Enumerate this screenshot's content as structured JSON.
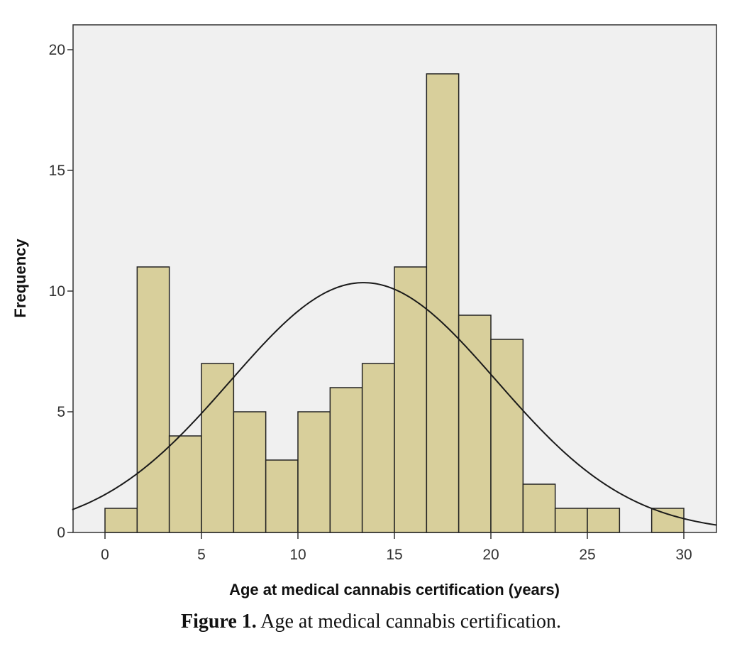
{
  "chart_data": {
    "type": "bar",
    "subtype": "histogram",
    "xlabel": "Age at medical cannabis certification (years)",
    "ylabel": "Frequency",
    "xlim": [
      -1.7,
      31.7
    ],
    "ylim": [
      0,
      21.2
    ],
    "xticks": [
      0,
      5,
      10,
      15,
      20,
      25,
      30
    ],
    "yticks": [
      0,
      5,
      10,
      15,
      20
    ],
    "bin_width": 1.667,
    "bins": [
      {
        "start": 0.0,
        "end": 1.667,
        "value": 1
      },
      {
        "start": 1.667,
        "end": 3.333,
        "value": 11
      },
      {
        "start": 3.333,
        "end": 5.0,
        "value": 4
      },
      {
        "start": 5.0,
        "end": 6.667,
        "value": 7
      },
      {
        "start": 6.667,
        "end": 8.333,
        "value": 5
      },
      {
        "start": 8.333,
        "end": 10.0,
        "value": 3
      },
      {
        "start": 10.0,
        "end": 11.667,
        "value": 5
      },
      {
        "start": 11.667,
        "end": 13.333,
        "value": 6
      },
      {
        "start": 13.333,
        "end": 15.0,
        "value": 7
      },
      {
        "start": 15.0,
        "end": 16.667,
        "value": 11
      },
      {
        "start": 16.667,
        "end": 18.333,
        "value": 19
      },
      {
        "start": 18.333,
        "end": 20.0,
        "value": 9
      },
      {
        "start": 20.0,
        "end": 21.667,
        "value": 8
      },
      {
        "start": 21.667,
        "end": 23.333,
        "value": 2
      },
      {
        "start": 23.333,
        "end": 25.0,
        "value": 1
      },
      {
        "start": 25.0,
        "end": 26.667,
        "value": 1
      },
      {
        "start": 28.333,
        "end": 30.0,
        "value": 1
      }
    ],
    "normal_curve": {
      "mean": 13.4,
      "sd": 6.9,
      "peak": 10.35
    },
    "grid": false
  },
  "caption": {
    "label": "Figure 1.",
    "text": "Age at medical cannabis certification."
  },
  "colors": {
    "plot_background": "#f0f0f0",
    "bar_fill": "#d8cf9b",
    "bar_stroke": "#222222",
    "curve": "#1a1a1a",
    "frame": "#333333"
  }
}
